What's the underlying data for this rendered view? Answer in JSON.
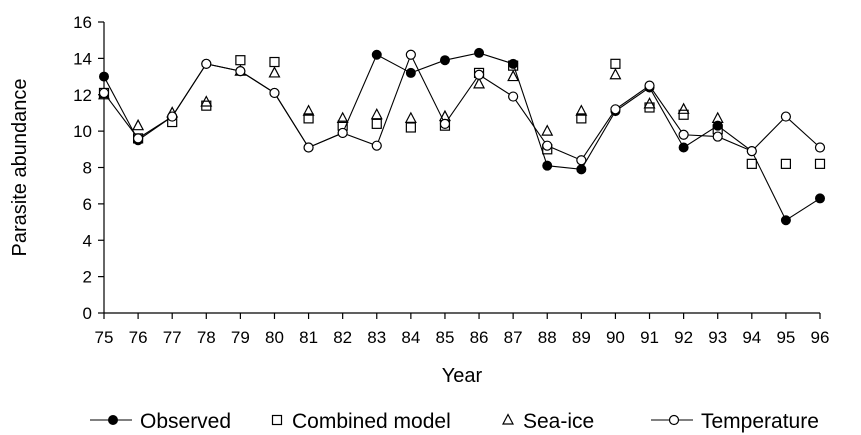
{
  "chart_data": {
    "type": "line",
    "xlabel": "Year",
    "ylabel": "Parasite abundance",
    "ylim": [
      0,
      16
    ],
    "yticks": [
      "0",
      "2",
      "4",
      "6",
      "8",
      "10",
      "12",
      "14",
      "16"
    ],
    "categories": [
      "75",
      "76",
      "77",
      "78",
      "79",
      "80",
      "81",
      "82",
      "83",
      "84",
      "85",
      "86",
      "87",
      "88",
      "89",
      "90",
      "91",
      "92",
      "93",
      "94",
      "95",
      "96"
    ],
    "grid": false,
    "legend_position": "bottom",
    "series": [
      {
        "name": "Observed",
        "marker": "filled-circle",
        "line": true,
        "values": [
          13.0,
          9.5,
          10.8,
          13.7,
          13.3,
          12.1,
          9.1,
          9.9,
          14.2,
          13.2,
          13.9,
          14.3,
          13.7,
          8.1,
          7.9,
          11.1,
          12.4,
          9.1,
          10.3,
          8.9,
          5.1,
          6.3
        ]
      },
      {
        "name": "Combined model",
        "marker": "open-square",
        "line": false,
        "values": [
          12.1,
          9.6,
          10.5,
          11.4,
          13.9,
          13.8,
          10.7,
          10.3,
          10.4,
          10.2,
          10.3,
          13.2,
          13.6,
          9.0,
          10.7,
          13.7,
          11.3,
          10.9,
          10.1,
          8.2,
          8.2,
          8.2
        ]
      },
      {
        "name": "Sea-ice",
        "marker": "open-triangle",
        "line": false,
        "values": [
          12.0,
          10.3,
          11.0,
          11.6,
          13.3,
          13.2,
          11.1,
          10.7,
          10.9,
          10.7,
          10.8,
          12.6,
          13.0,
          10.0,
          11.1,
          13.1,
          11.5,
          11.2,
          10.7,
          null,
          null,
          null
        ]
      },
      {
        "name": "Temperature",
        "marker": "open-circle",
        "line": true,
        "values": [
          12.1,
          9.6,
          10.8,
          13.7,
          13.3,
          12.1,
          9.1,
          9.9,
          9.2,
          14.2,
          10.4,
          13.1,
          11.9,
          9.2,
          8.4,
          11.2,
          12.5,
          9.8,
          9.7,
          8.9,
          10.8,
          9.1
        ]
      }
    ]
  },
  "colors": {
    "ink": "#000000",
    "background": "#ffffff"
  }
}
